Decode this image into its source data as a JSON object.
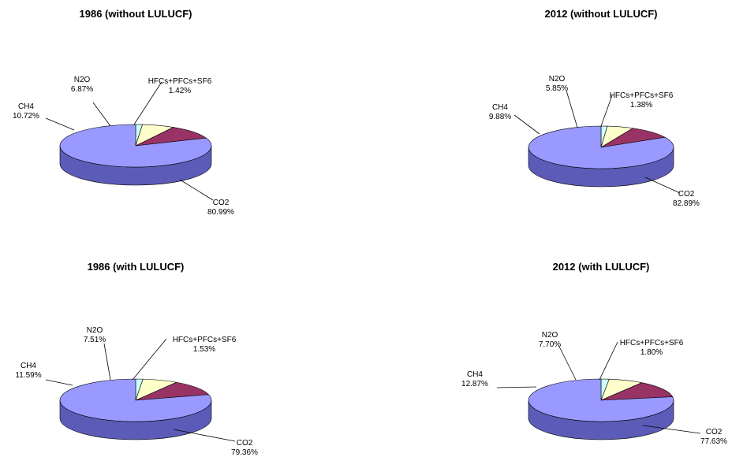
{
  "chart_data": [
    {
      "type": "pie",
      "title": "1986 (without LULUCF)",
      "categories": [
        "CO2",
        "CH4",
        "N2O",
        "HFCs+PFCs+SF6"
      ],
      "values": [
        80.99,
        10.72,
        6.87,
        1.42
      ],
      "value_labels": [
        "80.99%",
        "10.72%",
        "6.87%",
        "1.42%"
      ],
      "style": "3d"
    },
    {
      "type": "pie",
      "title": "2012 (without LULUCF)",
      "categories": [
        "CO2",
        "CH4",
        "N2O",
        "HFCs+PFCs+SF6"
      ],
      "values": [
        82.89,
        9.88,
        5.85,
        1.38
      ],
      "value_labels": [
        "82.89%",
        "9.88%",
        "5.85%",
        "1.38%"
      ],
      "style": "3d"
    },
    {
      "type": "pie",
      "title": "1986 (with LULUCF)",
      "categories": [
        "CO2",
        "CH4",
        "N2O",
        "HFCs+PFCs+SF6"
      ],
      "values": [
        79.36,
        11.59,
        7.51,
        1.53
      ],
      "value_labels": [
        "79.36%",
        "11.59%",
        "7.51%",
        "1.53%"
      ],
      "style": "3d"
    },
    {
      "type": "pie",
      "title": "2012 (with LULUCF)",
      "categories": [
        "CO2",
        "CH4",
        "N2O",
        "HFCs+PFCs+SF6"
      ],
      "values": [
        77.63,
        12.87,
        7.7,
        1.8
      ],
      "value_labels": [
        "77.63%",
        "12.87%",
        "7.70%",
        "1.80%"
      ],
      "style": "3d"
    }
  ],
  "colors": {
    "CO2": "#9999ff",
    "CH4": "#993366",
    "N2O": "#ffffcc",
    "HFCs+PFCs+SF6": "#ccffff",
    "CO2_side": "#5c5cb8",
    "CH4_side": "#5c1f3d",
    "N2O_side": "#b8b88a",
    "HFCs+PFCs+SF6_side": "#8ab8b8"
  }
}
